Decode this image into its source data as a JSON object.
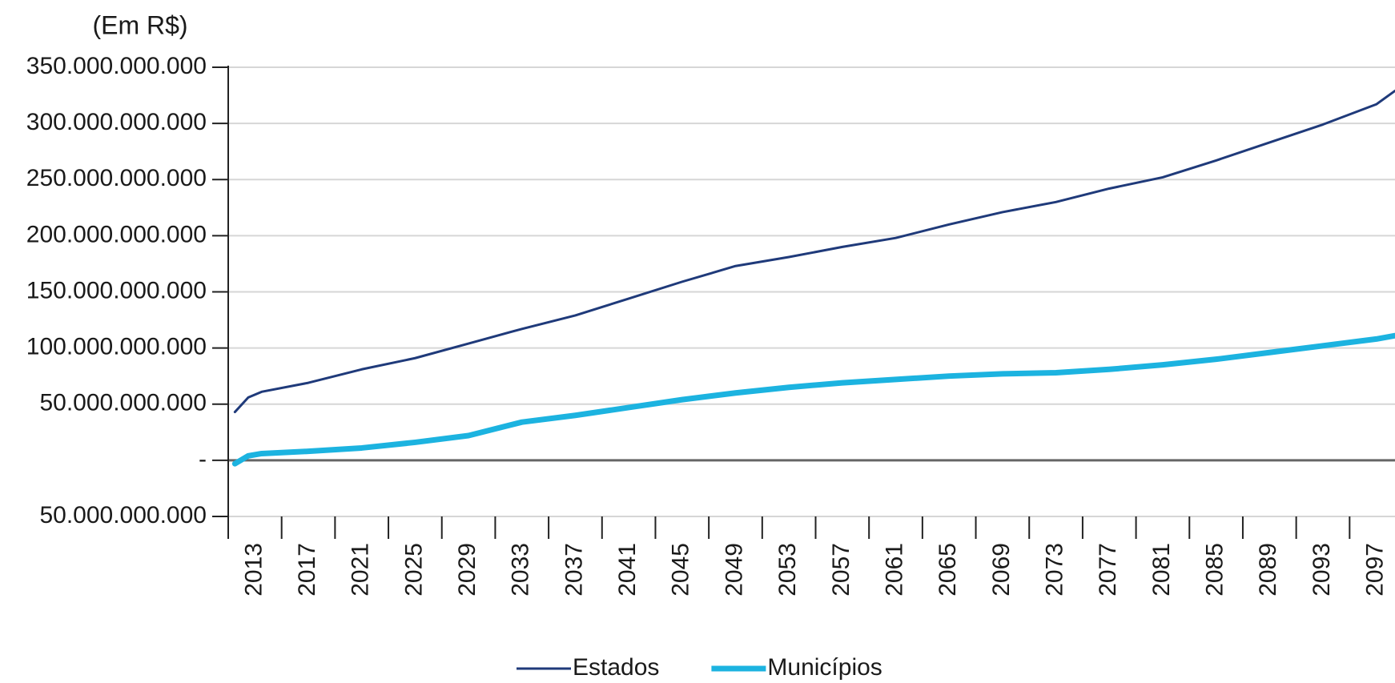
{
  "chart_data": {
    "type": "line",
    "y_unit": "(Em R$)",
    "x": [
      2011.5,
      2012.5,
      2013.5,
      2017,
      2021,
      2025,
      2029,
      2033,
      2037,
      2041,
      2045,
      2049,
      2053,
      2057,
      2061,
      2065,
      2069,
      2073,
      2077,
      2081,
      2085,
      2089,
      2093,
      2097,
      2098.4
    ],
    "series": [
      {
        "name": "Estados",
        "color": "#1f3a7a",
        "width": 3,
        "values": [
          43000000000,
          56000000000,
          61000000000,
          69000000000,
          81000000000,
          91000000000,
          104000000000,
          117000000000,
          129000000000,
          144000000000,
          159000000000,
          173000000000,
          181000000000,
          190000000000,
          198000000000,
          210000000000,
          221000000000,
          230000000000,
          242000000000,
          252000000000,
          267000000000,
          283000000000,
          299000000000,
          317000000000,
          329000000000
        ]
      },
      {
        "name": "Municípios",
        "color": "#1cb3e0",
        "width": 7,
        "values": [
          -3000000000,
          4000000000,
          6000000000,
          8000000000,
          11000000000,
          16000000000,
          22000000000,
          34000000000,
          40000000000,
          47000000000,
          54000000000,
          60000000000,
          65000000000,
          69000000000,
          72000000000,
          75000000000,
          77000000000,
          78000000000,
          81000000000,
          85000000000,
          90000000000,
          96000000000,
          102000000000,
          108000000000,
          111000000000
        ]
      }
    ],
    "xlim": [
      2011,
      2098.4
    ],
    "xticks": [
      2013,
      2017,
      2021,
      2025,
      2029,
      2033,
      2037,
      2041,
      2045,
      2049,
      2053,
      2057,
      2061,
      2065,
      2069,
      2073,
      2077,
      2081,
      2085,
      2089,
      2093,
      2097
    ],
    "ylim": [
      -50000000000,
      350000000000
    ],
    "yticks": [
      {
        "value": 350000000000,
        "label": "350.000.000.000"
      },
      {
        "value": 300000000000,
        "label": "300.000.000.000"
      },
      {
        "value": 250000000000,
        "label": "250.000.000.000"
      },
      {
        "value": 200000000000,
        "label": "200.000.000.000"
      },
      {
        "value": 150000000000,
        "label": "150.000.000.000"
      },
      {
        "value": 100000000000,
        "label": "100.000.000.000"
      },
      {
        "value": 50000000000,
        "label": "50.000.000.000"
      },
      {
        "value": 0,
        "label": "-"
      },
      {
        "value": -50000000000,
        "label": "50.000.000.000"
      }
    ],
    "grid": true
  }
}
